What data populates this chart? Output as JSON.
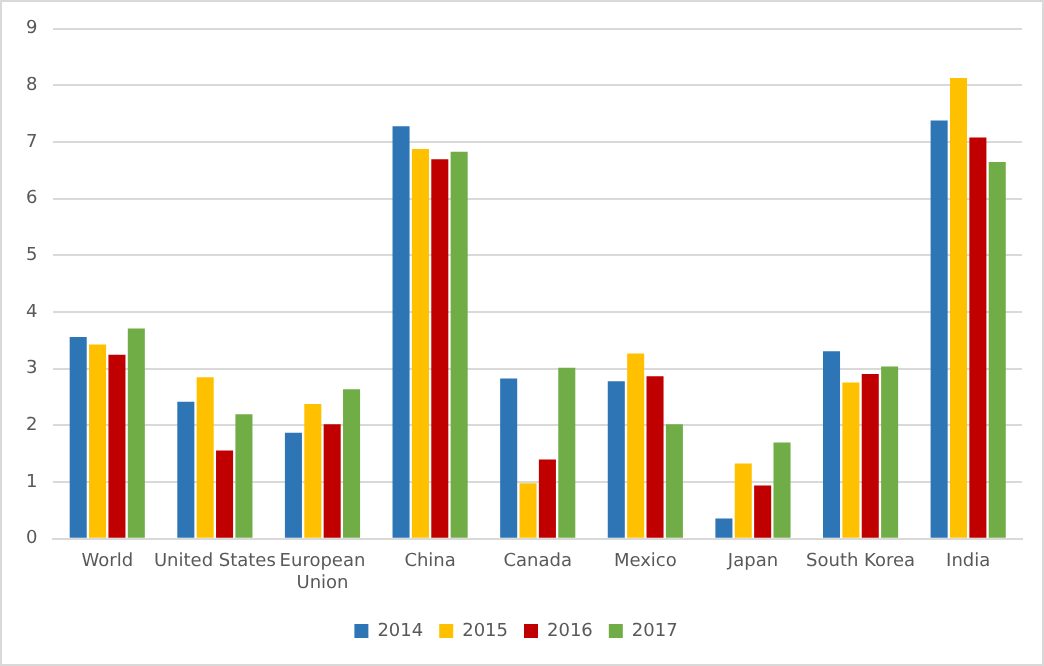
{
  "chart_data": {
    "type": "bar",
    "categories": [
      "World",
      "United States",
      "European Union",
      "China",
      "Canada",
      "Mexico",
      "Japan",
      "South Korea",
      "India"
    ],
    "series": [
      {
        "name": "2014",
        "color": "#2e75b6",
        "values": [
          3.56,
          2.42,
          1.87,
          7.28,
          2.83,
          2.78,
          0.36,
          3.31,
          7.38
        ]
      },
      {
        "name": "2015",
        "color": "#ffc000",
        "values": [
          3.43,
          2.85,
          2.38,
          6.88,
          0.98,
          3.27,
          1.33,
          2.76,
          8.13
        ]
      },
      {
        "name": "2016",
        "color": "#c00000",
        "values": [
          3.25,
          1.56,
          2.02,
          6.7,
          1.4,
          2.87,
          0.94,
          2.91,
          7.08
        ]
      },
      {
        "name": "2017",
        "color": "#70ad47",
        "values": [
          3.71,
          2.2,
          2.64,
          6.83,
          3.02,
          2.02,
          1.7,
          3.04,
          6.65
        ]
      }
    ],
    "ylim": [
      0,
      9
    ],
    "yticks": [
      0,
      1,
      2,
      3,
      4,
      5,
      6,
      7,
      8,
      9
    ],
    "grid": "y",
    "legend": "bottom"
  }
}
